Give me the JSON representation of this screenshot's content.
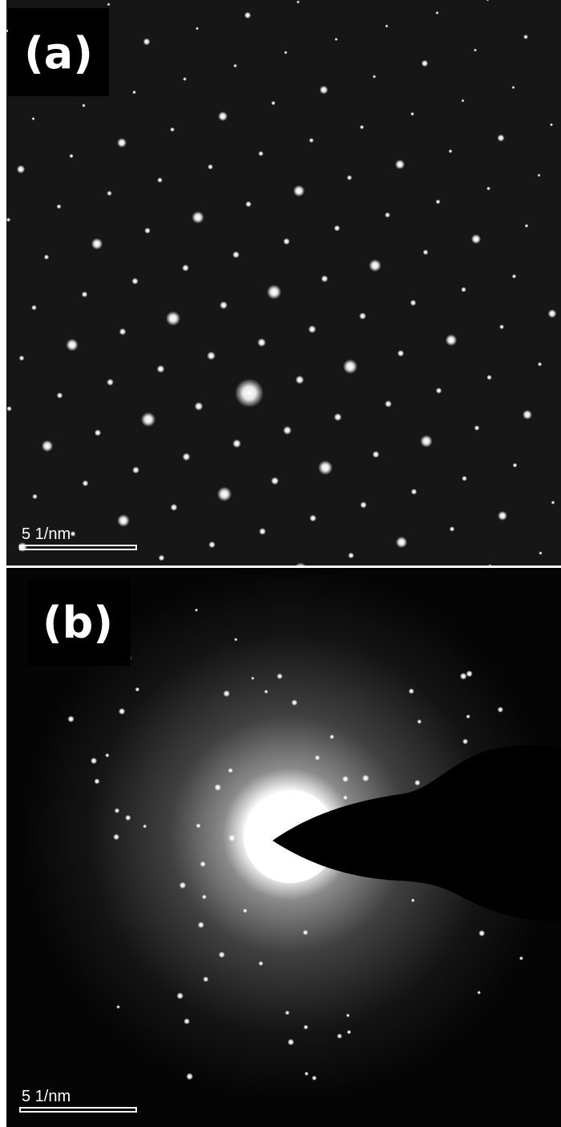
{
  "panels": [
    {
      "label": "(a)",
      "scale_bar": "5 1/nm"
    },
    {
      "label": "(b)",
      "scale_bar": "5 1/nm"
    }
  ]
}
